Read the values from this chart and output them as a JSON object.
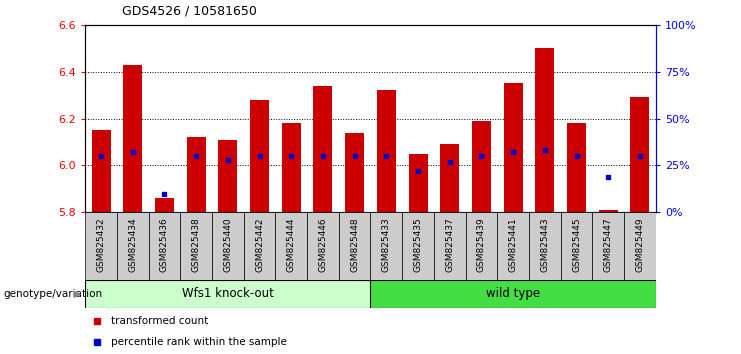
{
  "title": "GDS4526 / 10581650",
  "samples": [
    "GSM825432",
    "GSM825434",
    "GSM825436",
    "GSM825438",
    "GSM825440",
    "GSM825442",
    "GSM825444",
    "GSM825446",
    "GSM825448",
    "GSM825433",
    "GSM825435",
    "GSM825437",
    "GSM825439",
    "GSM825441",
    "GSM825443",
    "GSM825445",
    "GSM825447",
    "GSM825449"
  ],
  "transformed_counts": [
    6.15,
    6.43,
    5.86,
    6.12,
    6.11,
    6.28,
    6.18,
    6.34,
    6.14,
    6.32,
    6.05,
    6.09,
    6.19,
    6.35,
    6.5,
    6.18,
    5.81,
    6.29
  ],
  "percentile_ranks": [
    30,
    32,
    10,
    30,
    28,
    30,
    30,
    30,
    30,
    30,
    22,
    27,
    30,
    32,
    33,
    30,
    19,
    30
  ],
  "groups": [
    "Wfs1 knock-out",
    "Wfs1 knock-out",
    "Wfs1 knock-out",
    "Wfs1 knock-out",
    "Wfs1 knock-out",
    "Wfs1 knock-out",
    "Wfs1 knock-out",
    "Wfs1 knock-out",
    "Wfs1 knock-out",
    "wild type",
    "wild type",
    "wild type",
    "wild type",
    "wild type",
    "wild type",
    "wild type",
    "wild type",
    "wild type"
  ],
  "knockout_color": "#CCFFCC",
  "wildtype_color": "#44DD44",
  "bar_color": "#CC0000",
  "percentile_color": "#0000CC",
  "ylim_left": [
    5.8,
    6.6
  ],
  "ylim_right": [
    0,
    100
  ],
  "yticks_left": [
    5.8,
    6.0,
    6.2,
    6.4,
    6.6
  ],
  "yticks_right": [
    0,
    25,
    50,
    75,
    100
  ],
  "grid_values": [
    6.0,
    6.2,
    6.4
  ],
  "bar_width": 0.6,
  "legend_items": [
    "transformed count",
    "percentile rank within the sample"
  ],
  "legend_colors": [
    "#CC0000",
    "#0000CC"
  ],
  "xlabel_left": "genotype/variation",
  "sample_bg": "#CCCCCC",
  "knockout_label": "Wfs1 knock-out",
  "wildtype_label": "wild type"
}
